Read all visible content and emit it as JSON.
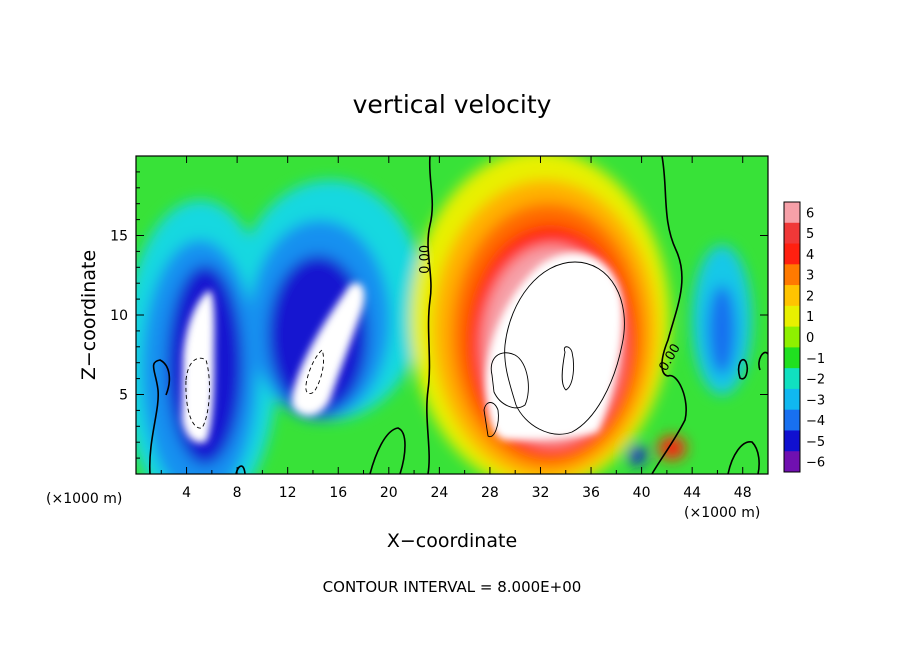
{
  "chart_data": {
    "type": "heatmap",
    "title": "vertical velocity",
    "xlabel": "X−coordinate",
    "ylabel": "Z−coordinate",
    "x_unit_left": "(×1000 m)",
    "x_unit_right": "(×1000 m)",
    "footer": "CONTOUR INTERVAL = 8.000E+00",
    "xlim": [
      0,
      50
    ],
    "ylim": [
      0,
      20
    ],
    "x_ticks": [
      4,
      8,
      12,
      16,
      20,
      24,
      28,
      32,
      36,
      40,
      44,
      48
    ],
    "x_tick_labels": [
      "4",
      "8",
      "12",
      "16",
      "20",
      "24",
      "28",
      "32",
      "36",
      "40",
      "44",
      "48"
    ],
    "y_ticks": [
      5,
      10,
      15
    ],
    "y_tick_labels": [
      "5",
      "10",
      "15"
    ],
    "colorbar": {
      "levels": [
        6,
        5,
        4,
        3,
        2,
        1,
        0,
        -1,
        -2,
        -3,
        -4,
        -5,
        -6
      ],
      "labels": [
        "6",
        "5",
        "4",
        "3",
        "2",
        "1",
        "0",
        "−1",
        "−2",
        "−3",
        "−4",
        "−5",
        "−6"
      ],
      "colors": [
        "#f6a0a8",
        "#f03838",
        "#ff2010",
        "#ff7a00",
        "#ffc400",
        "#e8f000",
        "#8ef000",
        "#20e020",
        "#10e0c0",
        "#10b8f0",
        "#1870f0",
        "#1010d0",
        "#7010b0"
      ]
    },
    "contour_labels": [
      {
        "text": "0.00",
        "x": 23.2,
        "y": 13.5
      },
      {
        "text": "0.00",
        "x": 42.5,
        "y": 7.2
      }
    ],
    "features": [
      {
        "sign": "negative",
        "x_range": [
          2,
          8
        ],
        "z_range": [
          1,
          11.5
        ],
        "peak_below": -6
      },
      {
        "sign": "negative",
        "x_range": [
          8,
          19
        ],
        "z_range": [
          2,
          12
        ],
        "peak_below": -6
      },
      {
        "sign": "positive",
        "x_range": [
          25,
          40
        ],
        "z_range": [
          1,
          15.5
        ],
        "peak_above": 6
      },
      {
        "sign": "negative",
        "x_range": [
          44,
          48
        ],
        "z_range": [
          4,
          14
        ],
        "peak": -4
      }
    ]
  }
}
